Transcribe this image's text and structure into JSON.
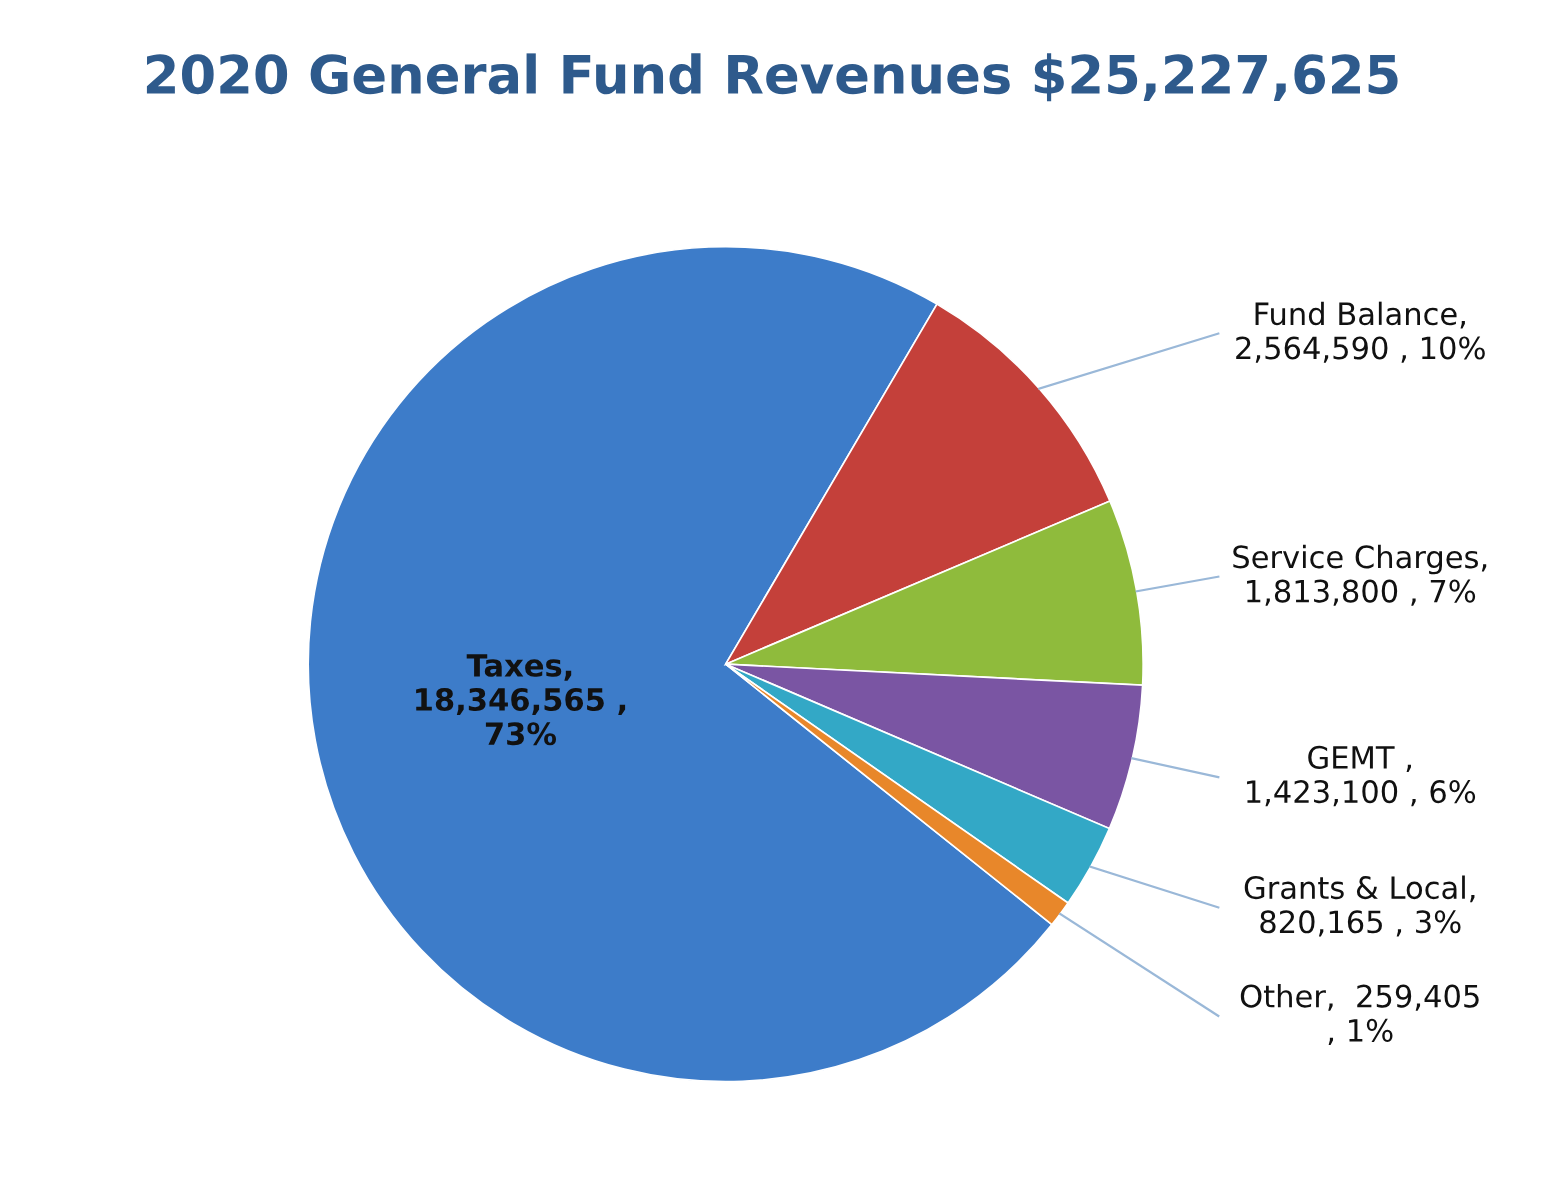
{
  "chart_data": {
    "type": "pie",
    "title": "2020 General Fund Revenues $25,227,625",
    "categories": [
      "Taxes",
      "Fund Balance",
      "Service Charges",
      "GEMT",
      "Grants & Local",
      "Other"
    ],
    "values": [
      18346565,
      2564590,
      1813800,
      1423100,
      820165,
      259405
    ],
    "value_labels": [
      ",\n18,346,565 ,\n73%",
      ",\n2,564,590 , 10%",
      ",\n1,813,800 , 7%",
      " ,\n1,423,100 , 6%",
      ",\n820,165 , 3%",
      ",  259,405\n, 1%"
    ],
    "colors": [
      "#3d7cc9",
      "#c4403a",
      "#8fbb3c",
      "#7a55a3",
      "#33a8c6",
      "#e8872a"
    ],
    "legend": false
  }
}
